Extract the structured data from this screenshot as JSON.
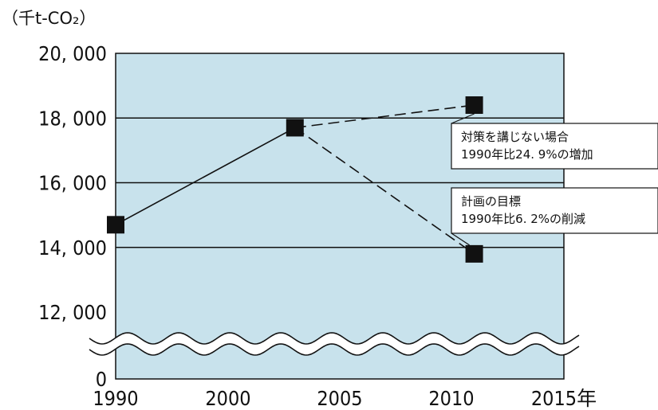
{
  "chart_data": {
    "type": "line",
    "unit_label": "（千t-CO₂）",
    "x_ticks": [
      "1990",
      "2000",
      "2005",
      "2010",
      "2015年"
    ],
    "y_ticks": [
      "0",
      "12, 000",
      "14, 000",
      "16, 000",
      "18, 000",
      "20, 000"
    ],
    "axis_break": {
      "lower": 0,
      "upper": 12000
    },
    "xlim": [
      1990,
      2015
    ],
    "ylim": [
      12000,
      20000
    ],
    "grid": "horizontal",
    "colors": {
      "plot_background": "#c8e2ec",
      "line": "#111111"
    },
    "series": [
      {
        "line": "solid",
        "points": [
          {
            "x": 1990,
            "y": 14700
          },
          {
            "x": 2000,
            "y": 17700
          }
        ]
      },
      {
        "line": "dashed",
        "points": [
          {
            "x": 2000,
            "y": 17700
          },
          {
            "x": 2010,
            "y": 18400
          }
        ]
      },
      {
        "line": "dashed",
        "points": [
          {
            "x": 2000,
            "y": 17700
          },
          {
            "x": 2010,
            "y": 13800
          }
        ]
      }
    ],
    "annotations": [
      {
        "x": 2010,
        "y": 18400,
        "lines": [
          "対策を講じない場合",
          "1990年比24. 9%の増加"
        ]
      },
      {
        "x": 2010,
        "y": 13800,
        "lines": [
          "計画の目標",
          "1990年比6. 2%の削減"
        ]
      }
    ]
  }
}
